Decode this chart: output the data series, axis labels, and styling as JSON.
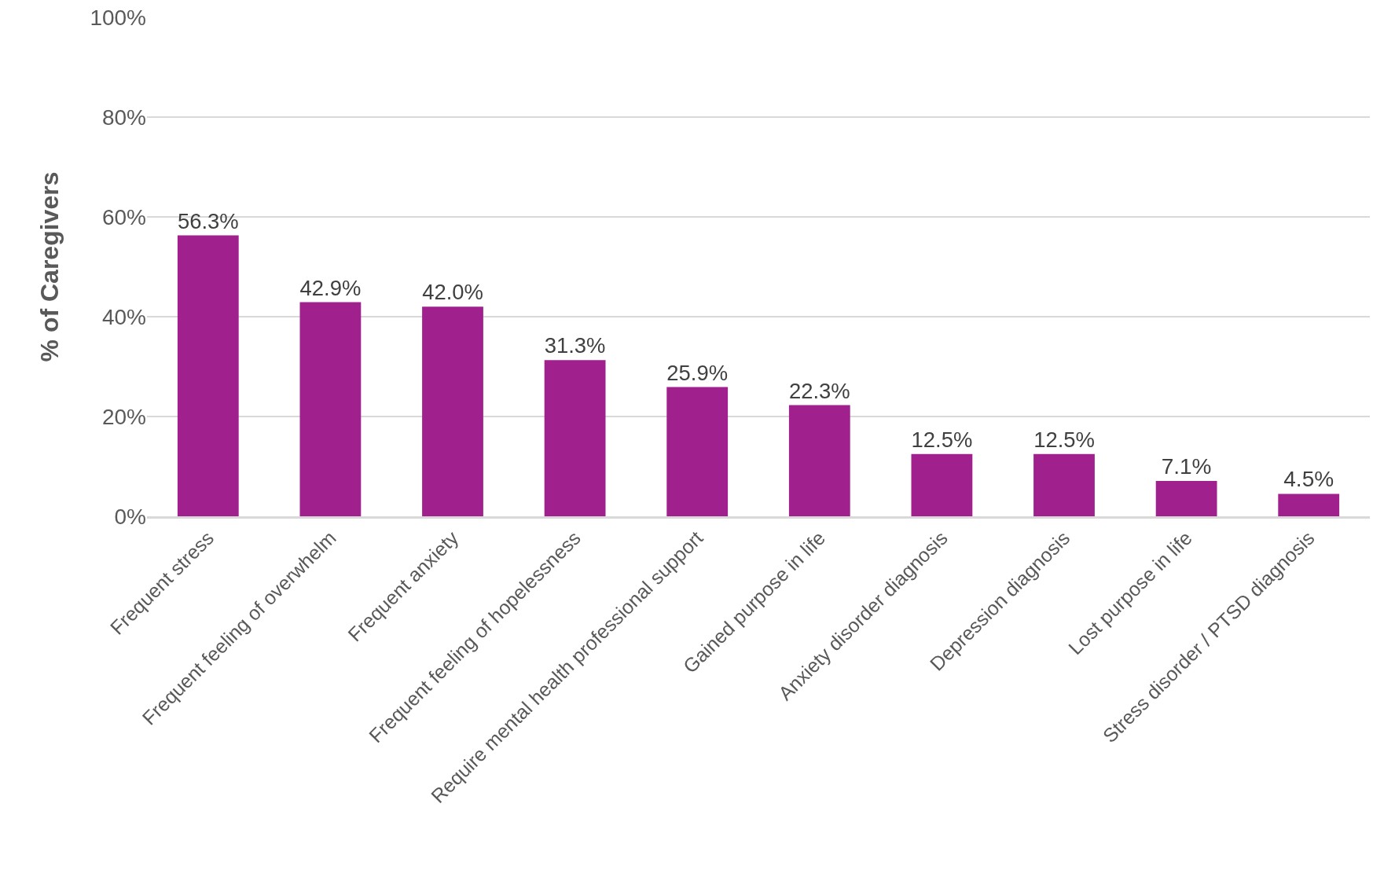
{
  "chart_data": {
    "type": "bar",
    "ylabel": "% of Caregivers",
    "categories": [
      "Frequent stress",
      "Frequent feeling of overwhelm",
      "Frequent anxiety",
      "Frequent feeling of hopelessness",
      "Require mental health professional support",
      "Gained purpose in life",
      "Anxiety disorder diagnosis",
      "Depression diagnosis",
      "Lost purpose in life",
      "Stress disorder / PTSD diagnosis"
    ],
    "values": [
      56.3,
      42.9,
      42.0,
      31.3,
      25.9,
      22.3,
      12.5,
      12.5,
      7.1,
      4.5
    ],
    "value_labels": [
      "56.3%",
      "42.9%",
      "42.0%",
      "31.3%",
      "25.9%",
      "22.3%",
      "12.5%",
      "12.5%",
      "7.1%",
      "4.5%"
    ],
    "color": "#a0208e",
    "ylim": [
      0,
      100
    ],
    "yticks": [
      {
        "value": 0,
        "label": "0%"
      },
      {
        "value": 20,
        "label": "20%"
      },
      {
        "value": 40,
        "label": "40%"
      },
      {
        "value": 60,
        "label": "60%"
      },
      {
        "value": 80,
        "label": "80%"
      },
      {
        "value": 100,
        "label": "100%"
      }
    ],
    "grid": "y"
  }
}
